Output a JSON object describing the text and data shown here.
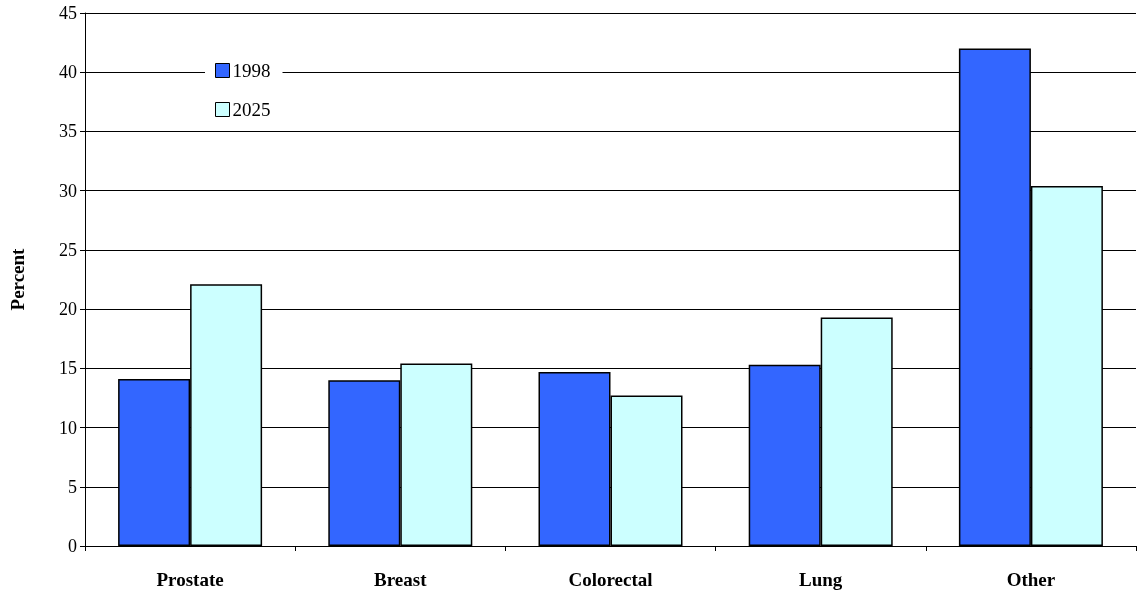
{
  "chart_data": {
    "type": "bar",
    "ylabel": "Percent",
    "categories": [
      "Prostate",
      "Breast",
      "Colorectal",
      "Lung",
      "Other"
    ],
    "series": [
      {
        "name": "1998",
        "color": "#3366ff",
        "values": [
          14.1,
          14.0,
          14.7,
          15.3,
          42.0
        ]
      },
      {
        "name": "2025",
        "color": "#ccffff",
        "values": [
          22.1,
          15.4,
          12.7,
          19.3,
          30.4
        ]
      }
    ],
    "ylim": [
      0,
      45
    ],
    "yticks": [
      0,
      5,
      10,
      15,
      20,
      25,
      30,
      35,
      40,
      45
    ],
    "grid": "y",
    "legend": "top left"
  }
}
